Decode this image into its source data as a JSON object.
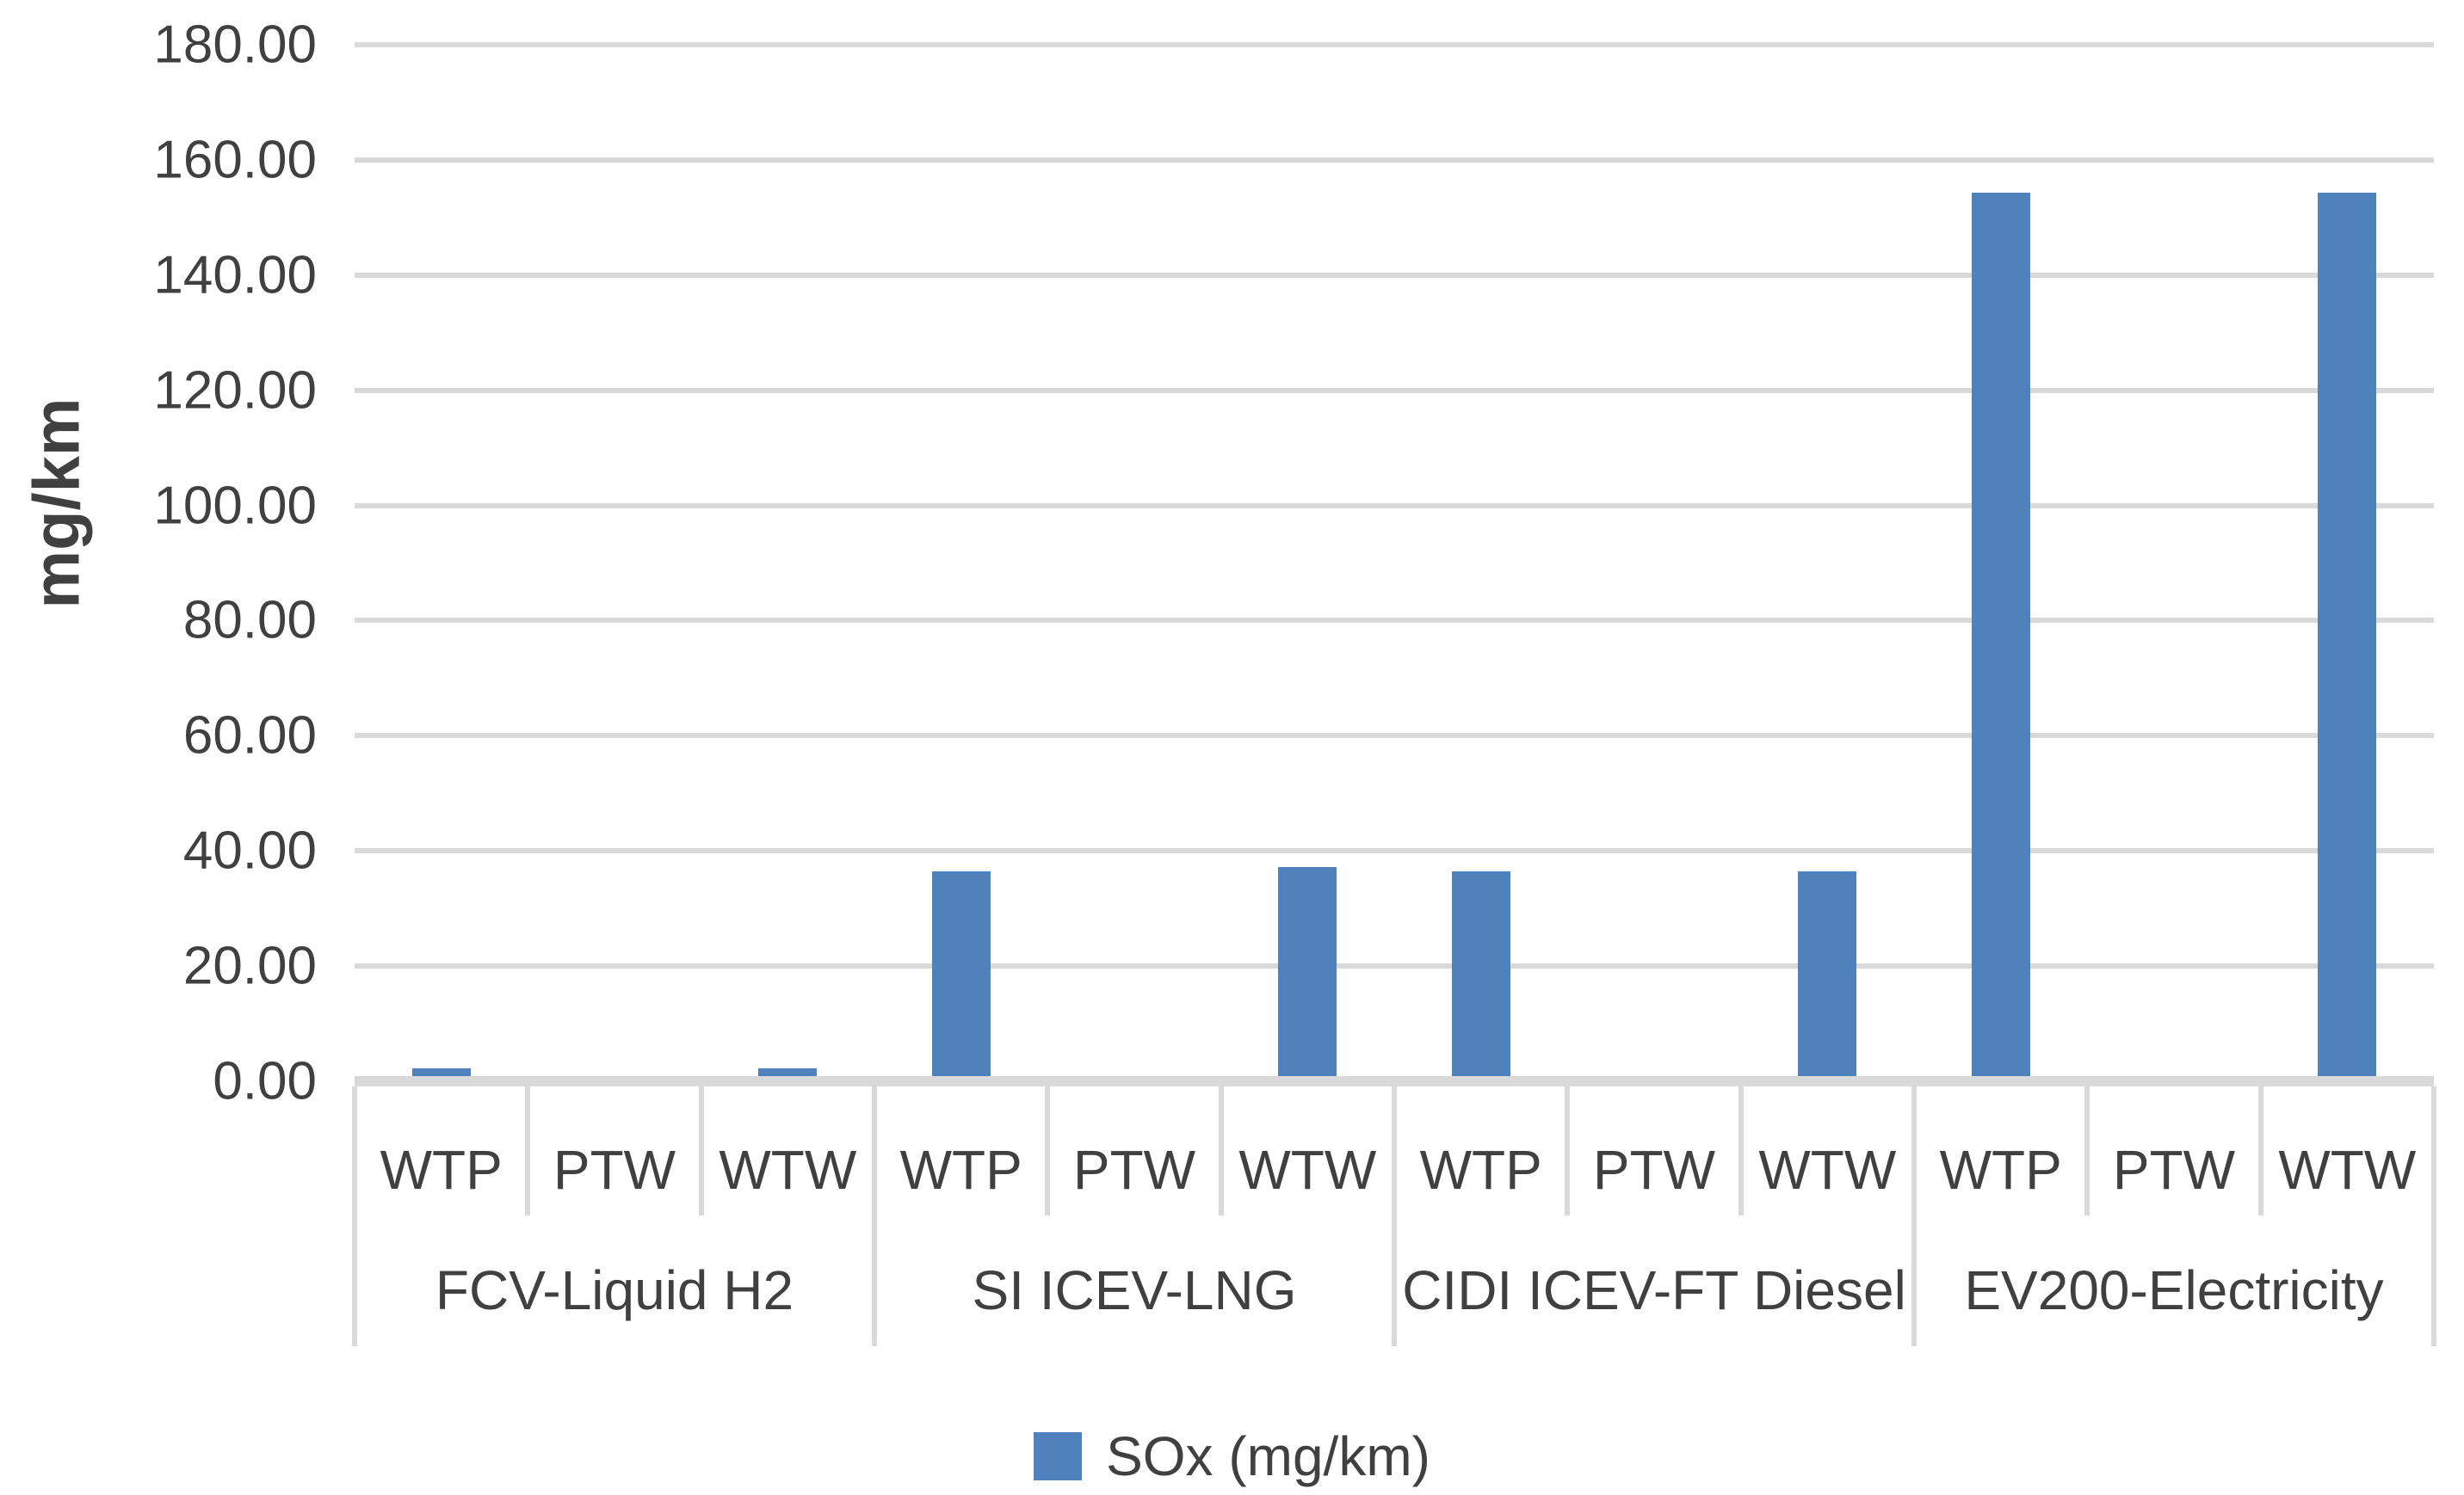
{
  "chart_data": {
    "type": "bar",
    "title": "",
    "xlabel": "",
    "ylabel": "mg/km",
    "ylim": [
      0,
      180
    ],
    "ytick_step": 20,
    "ytick_labels": [
      "0.00",
      "20.00",
      "40.00",
      "60.00",
      "80.00",
      "100.00",
      "120.00",
      "140.00",
      "160.00",
      "180.00"
    ],
    "grid": true,
    "categories_per_group": [
      "WTP",
      "PTW",
      "WTW"
    ],
    "groups": [
      {
        "label": "FCV-Liquid H2",
        "values": [
          2.2,
          0.0,
          2.2
        ]
      },
      {
        "label": "SI ICEV-LNG",
        "values": [
          36.5,
          0.0,
          37.2
        ]
      },
      {
        "label": "CIDI ICEV-FT Diesel",
        "values": [
          36.5,
          0.0,
          36.5
        ]
      },
      {
        "label": "EV200-Electricity",
        "values": [
          154.3,
          0.0,
          154.3
        ]
      }
    ],
    "series": [
      {
        "name": "SOx (mg/km)",
        "color": "#4F81BD"
      }
    ],
    "legend": {
      "position": "bottom",
      "label": "SOx (mg/km)",
      "swatch_color": "#4F81BD"
    },
    "colors": {
      "bar": "#4F81BD",
      "gridline": "#D9D9D9",
      "axis_line": "#D9D9D9",
      "text": "#404040",
      "background": "#FFFFFF"
    }
  }
}
